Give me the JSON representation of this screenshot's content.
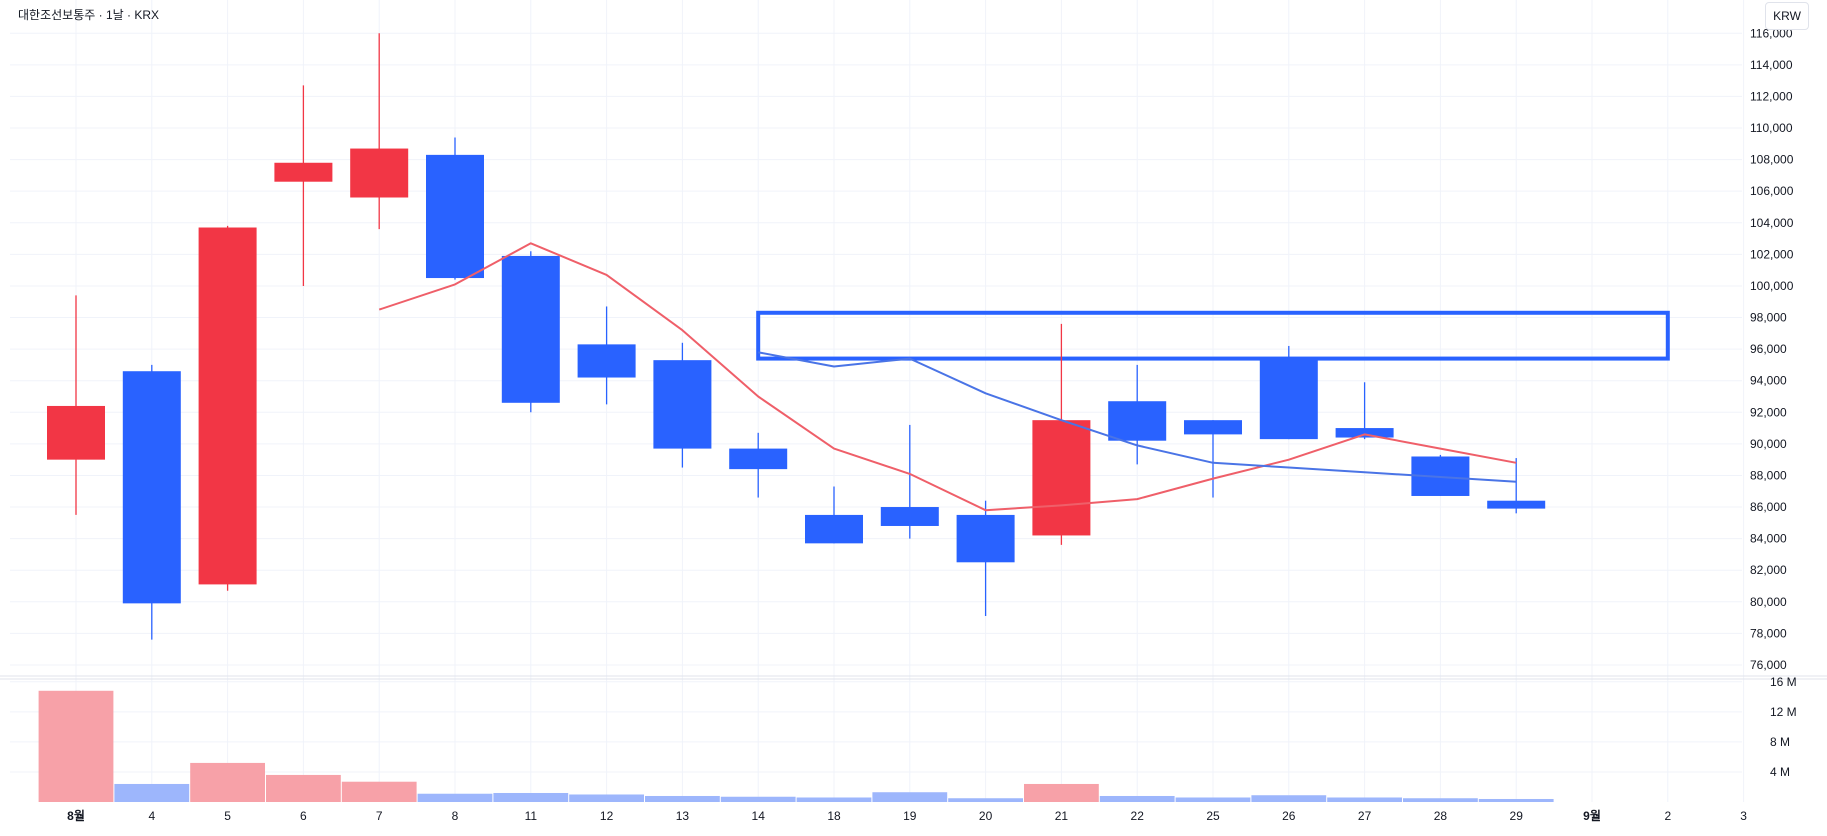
{
  "title": "대한조선보통주 · 1날 · KRX",
  "currency": "KRW",
  "colors": {
    "up": "#f23645",
    "down": "#2962ff",
    "volume_up": "#f7a1a8",
    "volume_down": "#9db6fc",
    "ma_red": "#ef5f69",
    "ma_blue": "#4a74e6",
    "zone": "#2962ff",
    "grid": "#f0f3fa",
    "axis_text": "#131722"
  },
  "chart_data": {
    "type": "candlestick",
    "x_tick_labels": [
      "8월",
      "4",
      "5",
      "6",
      "7",
      "8",
      "11",
      "12",
      "13",
      "14",
      "18",
      "19",
      "20",
      "21",
      "22",
      "25",
      "26",
      "27",
      "28",
      "29",
      "9월",
      "2",
      "3"
    ],
    "y_tick_labels": [
      "116,000",
      "114,000",
      "112,000",
      "110,000",
      "108,000",
      "106,000",
      "104,000",
      "102,000",
      "100,000",
      "98,000",
      "96,000",
      "94,000",
      "92,000",
      "90,000",
      "88,000",
      "86,000",
      "84,000",
      "82,000",
      "80,000",
      "78,000",
      "76,000"
    ],
    "volume_tick_labels": [
      "16 M",
      "12 M",
      "8 M",
      "4 M"
    ],
    "ylim": [
      75300,
      117600
    ],
    "volume_ylim": [
      0,
      16500000
    ],
    "candles": [
      {
        "date": "8월",
        "open": 89000,
        "high": 99400,
        "low": 85500,
        "close": 92400,
        "volume": 14800000
      },
      {
        "date": "4",
        "open": 94600,
        "high": 95000,
        "low": 77600,
        "close": 79900,
        "volume": 2400000
      },
      {
        "date": "5",
        "open": 81100,
        "high": 103800,
        "low": 80700,
        "close": 103700,
        "volume": 5200000
      },
      {
        "date": "6",
        "open": 106600,
        "high": 112700,
        "low": 100000,
        "close": 107800,
        "volume": 3600000
      },
      {
        "date": "7",
        "open": 105600,
        "high": 116000,
        "low": 103600,
        "close": 108700,
        "volume": 2700000
      },
      {
        "date": "8",
        "open": 108300,
        "high": 109400,
        "low": 100400,
        "close": 100500,
        "volume": 1100000
      },
      {
        "date": "11",
        "open": 101900,
        "high": 102200,
        "low": 92000,
        "close": 92600,
        "volume": 1200000
      },
      {
        "date": "12",
        "open": 96300,
        "high": 98700,
        "low": 92500,
        "close": 94200,
        "volume": 1000000
      },
      {
        "date": "13",
        "open": 95300,
        "high": 96400,
        "low": 88500,
        "close": 89700,
        "volume": 800000
      },
      {
        "date": "14",
        "open": 89700,
        "high": 90700,
        "low": 86600,
        "close": 88400,
        "volume": 700000
      },
      {
        "date": "18",
        "open": 85500,
        "high": 87300,
        "low": 83700,
        "close": 83700,
        "volume": 600000
      },
      {
        "date": "19",
        "open": 86000,
        "high": 91200,
        "low": 84000,
        "close": 84800,
        "volume": 1300000
      },
      {
        "date": "20",
        "open": 85500,
        "high": 86400,
        "low": 79100,
        "close": 82500,
        "volume": 500000
      },
      {
        "date": "21",
        "open": 84200,
        "high": 97600,
        "low": 83600,
        "close": 91500,
        "volume": 2400000
      },
      {
        "date": "22",
        "open": 92700,
        "high": 95000,
        "low": 88700,
        "close": 90200,
        "volume": 800000
      },
      {
        "date": "25",
        "open": 91500,
        "high": 91500,
        "low": 86600,
        "close": 90600,
        "volume": 600000
      },
      {
        "date": "26",
        "open": 95500,
        "high": 96200,
        "low": 90300,
        "close": 90300,
        "volume": 900000
      },
      {
        "date": "27",
        "open": 91000,
        "high": 93900,
        "low": 90300,
        "close": 90400,
        "volume": 600000
      },
      {
        "date": "28",
        "open": 89200,
        "high": 89300,
        "low": 86700,
        "close": 86700,
        "volume": 500000
      },
      {
        "date": "29",
        "open": 86400,
        "high": 89100,
        "low": 85600,
        "close": 85900,
        "volume": 400000
      }
    ],
    "ma_red": [
      {
        "date": "7",
        "value": 98500
      },
      {
        "date": "8",
        "value": 100100
      },
      {
        "date": "11",
        "value": 102700
      },
      {
        "date": "12",
        "value": 100700
      },
      {
        "date": "13",
        "value": 97200
      },
      {
        "date": "14",
        "value": 93000
      },
      {
        "date": "18",
        "value": 89700
      },
      {
        "date": "19",
        "value": 88100
      },
      {
        "date": "20",
        "value": 85800
      },
      {
        "date": "21",
        "value": 86100
      },
      {
        "date": "22",
        "value": 86500
      },
      {
        "date": "25",
        "value": 87800
      },
      {
        "date": "26",
        "value": 89000
      },
      {
        "date": "27",
        "value": 90600
      },
      {
        "date": "28",
        "value": 89700
      },
      {
        "date": "29",
        "value": 88800
      }
    ],
    "ma_blue": [
      {
        "date": "14",
        "value": 95800
      },
      {
        "date": "18",
        "value": 94900
      },
      {
        "date": "19",
        "value": 95400
      },
      {
        "date": "20",
        "value": 93200
      },
      {
        "date": "21",
        "value": 91500
      },
      {
        "date": "22",
        "value": 89900
      },
      {
        "date": "25",
        "value": 88800
      },
      {
        "date": "26",
        "value": 88500
      },
      {
        "date": "27",
        "value": 88200
      },
      {
        "date": "28",
        "value": 87900
      },
      {
        "date": "29",
        "value": 87600
      }
    ],
    "zone": {
      "from": "14",
      "to": "2",
      "low": 95400,
      "high": 98300
    }
  }
}
